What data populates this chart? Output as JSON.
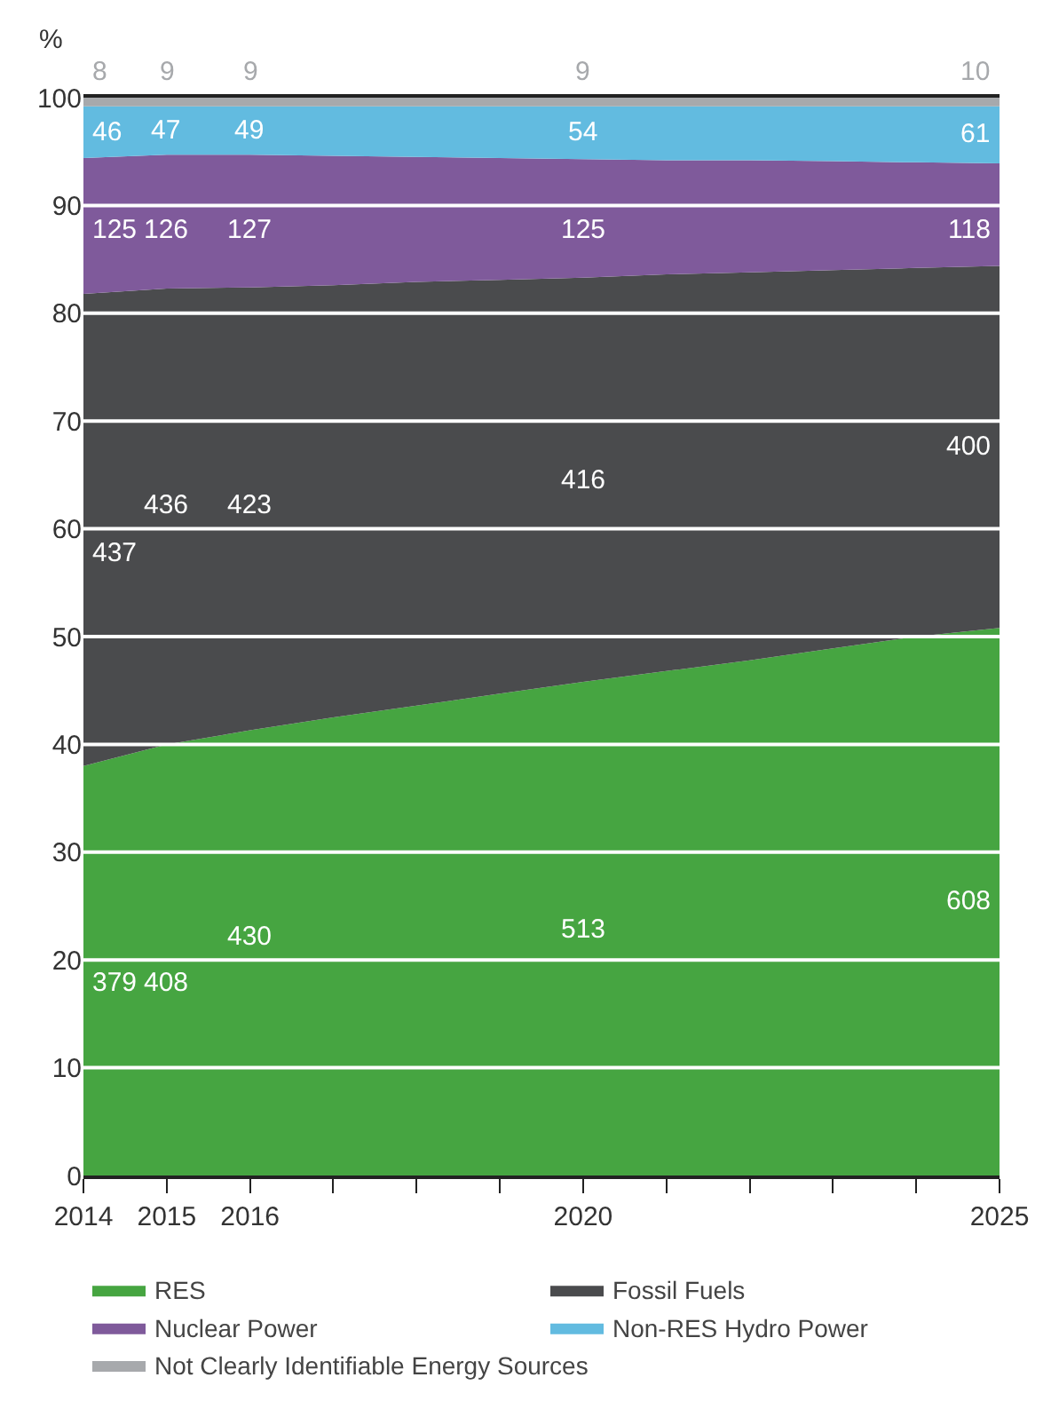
{
  "chart_data": {
    "type": "area",
    "stacked": true,
    "ylabel": "%",
    "x": [
      2014,
      2015,
      2016,
      2017,
      2018,
      2019,
      2020,
      2021,
      2022,
      2023,
      2024,
      2025
    ],
    "series": [
      {
        "name": "RES",
        "color": "#46a541",
        "values": [
          38,
          40,
          41.3,
          42.5,
          43.6,
          44.7,
          45.8,
          46.8,
          47.8,
          48.9,
          50,
          50.8
        ]
      },
      {
        "name": "Fossil Fuels",
        "color": "#4a4b4d",
        "values": [
          43.8,
          42.3,
          41.1,
          40.1,
          39.3,
          38.4,
          37.5,
          36.8,
          36.0,
          35.1,
          34.2,
          33.6
        ]
      },
      {
        "name": "Nuclear Power",
        "color": "#7f5a9b",
        "values": [
          12.6,
          12.4,
          12.3,
          12.0,
          11.6,
          11.3,
          11.0,
          10.6,
          10.4,
          10.1,
          9.8,
          9.5
        ]
      },
      {
        "name": "Non-RES Hydro Power",
        "color": "#62bbe0",
        "values": [
          4.8,
          4.5,
          4.5,
          4.6,
          4.7,
          4.8,
          4.9,
          5.0,
          5.0,
          5.1,
          5.2,
          5.3
        ]
      },
      {
        "name": "Not Clearly Identifiable Energy Sources",
        "color": "#a7a9ac",
        "values": [
          0.8,
          0.8,
          0.8,
          0.8,
          0.8,
          0.8,
          0.8,
          0.8,
          0.8,
          0.8,
          0.8,
          0.8
        ]
      }
    ],
    "annotations": [
      "379",
      "408",
      "430",
      "513",
      "608",
      "437",
      "436",
      "423",
      "416",
      "400",
      "125",
      "126",
      "127",
      "125",
      "118",
      "46",
      "47",
      "49",
      "54",
      "61",
      "8",
      "9",
      "9",
      "9",
      "10"
    ],
    "xlim": [
      2014,
      2025
    ],
    "xticks": [
      2014,
      2015,
      2016,
      {
        "value": 2017,
        "label": null
      },
      {
        "value": 2018,
        "label": null
      },
      {
        "value": 2019,
        "label": null
      },
      2020,
      {
        "value": 2021,
        "label": null
      },
      {
        "value": 2022,
        "label": null
      },
      {
        "value": 2023,
        "label": null
      },
      {
        "value": 2024,
        "label": null
      },
      2025
    ],
    "ylim": [
      0,
      100
    ],
    "yticks": [
      0,
      10,
      20,
      30,
      40,
      50,
      60,
      70,
      80,
      90,
      100
    ],
    "grid": "y",
    "legend": "bottom"
  }
}
